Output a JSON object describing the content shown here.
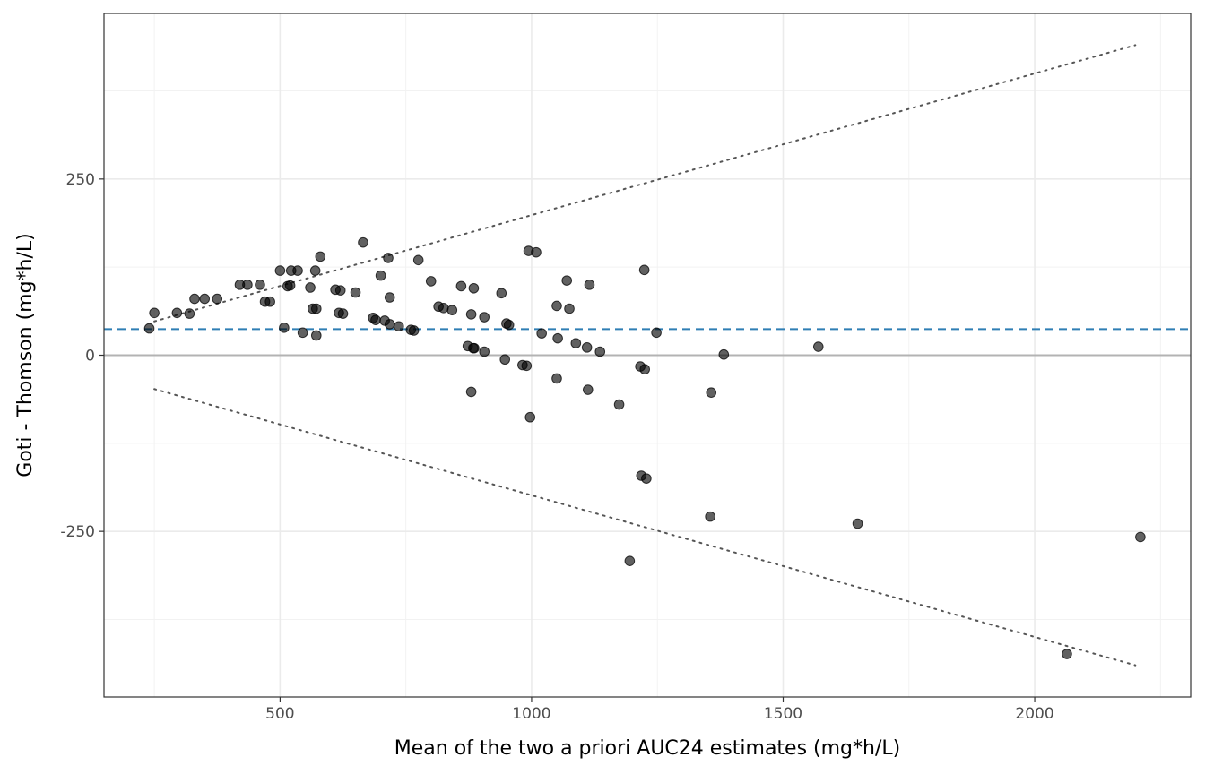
{
  "chart_data": {
    "type": "scatter",
    "xlabel": "Mean of the two a priori AUC24 estimates (mg*h/L)",
    "ylabel": "Goti - Thomson (mg*h/L)",
    "xlim": [
      150,
      2310
    ],
    "ylim": [
      -485,
      485
    ],
    "x_ticks": [
      500,
      1000,
      1500,
      2000
    ],
    "x_tick_labels": [
      "500",
      "1000",
      "1500",
      "2000"
    ],
    "y_ticks": [
      -250,
      0,
      250
    ],
    "y_tick_labels": [
      "-250",
      "0",
      "250"
    ],
    "grid": true,
    "mean_difference": 37,
    "zero_line": 0,
    "limits_of_agreement": [
      {
        "x": [
          250,
          2200
        ],
        "y": [
          48,
          440
        ]
      },
      {
        "x": [
          250,
          2200
        ],
        "y": [
          -48,
          -440
        ]
      }
    ],
    "points": {
      "x": [
        240,
        250,
        295,
        320,
        330,
        350,
        375,
        420,
        435,
        460,
        470,
        480,
        500,
        508,
        515,
        520,
        522,
        535,
        545,
        560,
        565,
        570,
        572,
        572,
        580,
        610,
        617,
        620,
        625,
        650,
        665,
        685,
        690,
        700,
        708,
        715,
        718,
        718,
        736,
        760,
        766,
        775,
        800,
        815,
        825,
        842,
        860,
        873,
        880,
        880,
        884,
        885,
        886,
        906,
        906,
        940,
        947,
        950,
        955,
        982,
        990,
        994,
        997,
        1009,
        1020,
        1050,
        1050,
        1052,
        1070,
        1075,
        1088,
        1110,
        1112,
        1115,
        1136,
        1174,
        1195,
        1216,
        1218,
        1224,
        1225,
        1228,
        1248,
        1355,
        1357,
        1382,
        1570,
        1648,
        2064,
        2210
      ],
      "y": [
        38,
        60,
        60,
        59,
        80,
        80,
        80,
        100,
        100,
        100,
        76,
        76,
        120,
        39,
        98,
        99,
        120,
        120,
        32,
        96,
        66,
        120,
        66,
        28,
        140,
        93,
        60,
        92,
        59,
        89,
        160,
        53,
        50,
        113,
        49,
        138,
        82,
        44,
        41,
        36,
        35,
        135,
        105,
        69,
        67,
        64,
        98,
        13,
        58,
        -52,
        10,
        95,
        10,
        54,
        5,
        88,
        -6,
        45,
        43,
        -14,
        -15,
        148,
        -88,
        146,
        31,
        70,
        -33,
        24,
        106,
        66,
        17,
        11,
        -49,
        100,
        5,
        -70,
        -292,
        -16,
        -171,
        121,
        -20,
        -175,
        32,
        -229,
        -53,
        1,
        12,
        -239,
        -424,
        -258
      ]
    }
  }
}
